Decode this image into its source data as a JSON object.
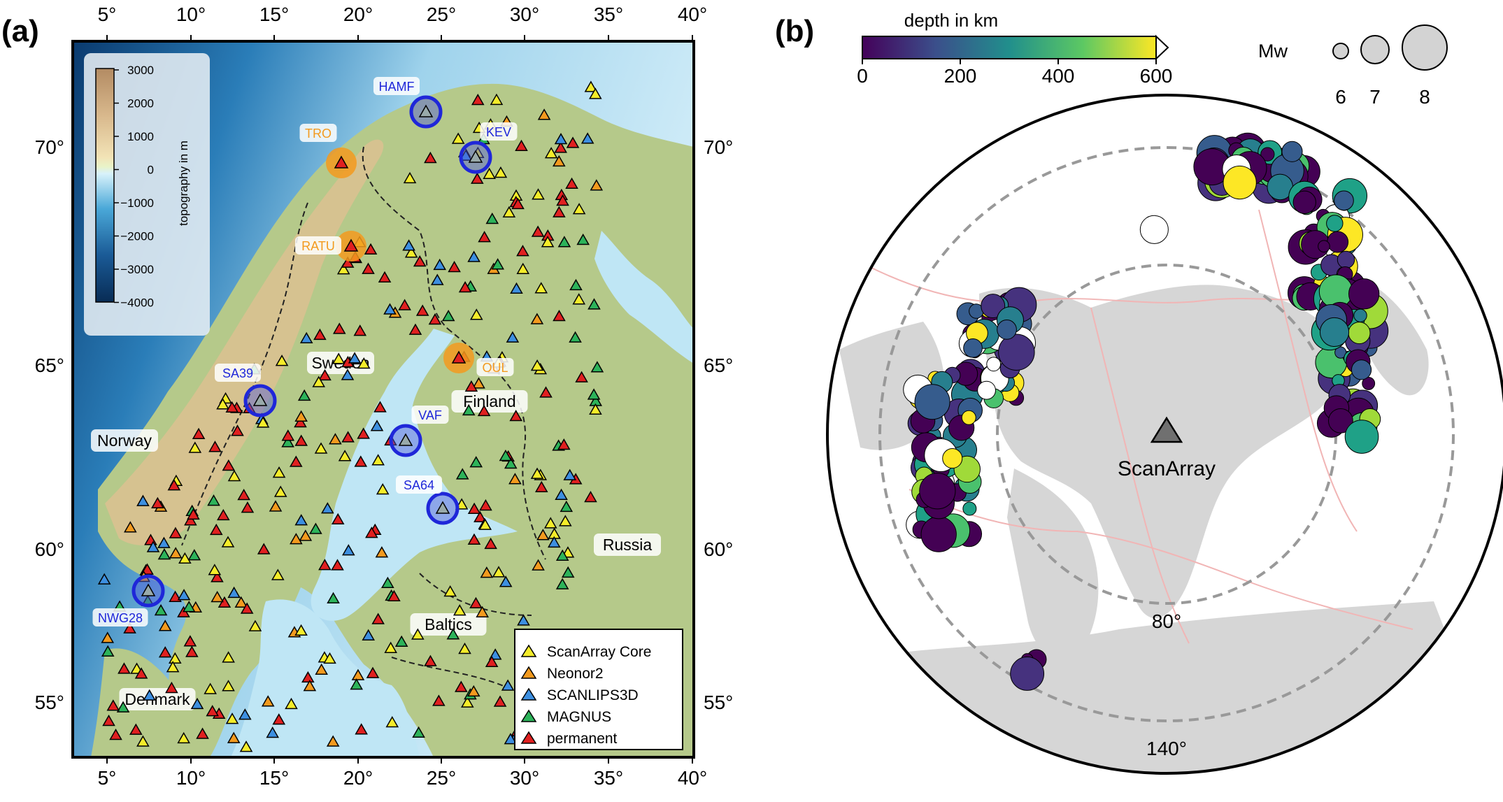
{
  "panel_a": {
    "label": "(a)",
    "lon_ticks": [
      "5°",
      "10°",
      "15°",
      "20°",
      "25°",
      "30°",
      "35°",
      "40°"
    ],
    "lat_ticks": [
      "55°",
      "60°",
      "65°",
      "70°"
    ],
    "colorbar": {
      "title": "topography in m",
      "ticks": [
        "3000",
        "2000",
        "1000",
        "0",
        "−1000",
        "−2000",
        "−3000",
        "−4000"
      ]
    },
    "countries": [
      {
        "name": "Norway"
      },
      {
        "name": "Sweden"
      },
      {
        "name": "Finland"
      },
      {
        "name": "Russia"
      },
      {
        "name": "Baltics"
      },
      {
        "name": "Denmark"
      }
    ],
    "highlighted_stations": [
      {
        "code": "HAMF",
        "group": "blue"
      },
      {
        "code": "TRO",
        "group": "orange"
      },
      {
        "code": "KEV",
        "group": "blue"
      },
      {
        "code": "RATU",
        "group": "orange"
      },
      {
        "code": "OUL",
        "group": "orange"
      },
      {
        "code": "SA39",
        "group": "blue"
      },
      {
        "code": "VAF",
        "group": "blue"
      },
      {
        "code": "SA64",
        "group": "blue"
      },
      {
        "code": "NWG28",
        "group": "blue"
      }
    ],
    "legend": [
      {
        "label": "ScanArray Core",
        "color": "#f4ec2a"
      },
      {
        "label": "Neonor2",
        "color": "#f39a1e"
      },
      {
        "label": "SCANLIPS3D",
        "color": "#3d8fe0"
      },
      {
        "label": "MAGNUS",
        "color": "#2db35a"
      },
      {
        "label": "permanent",
        "color": "#e02020"
      }
    ]
  },
  "panel_b": {
    "label": "(b)",
    "colorbar": {
      "title": "depth in km",
      "ticks": [
        "0",
        "200",
        "400",
        "600"
      ]
    },
    "magnitude_legend": {
      "title": "Mw",
      "values": [
        "6",
        "7",
        "8"
      ]
    },
    "array_label": "ScanArray",
    "distance_labels": [
      "80°",
      "140°"
    ]
  }
}
